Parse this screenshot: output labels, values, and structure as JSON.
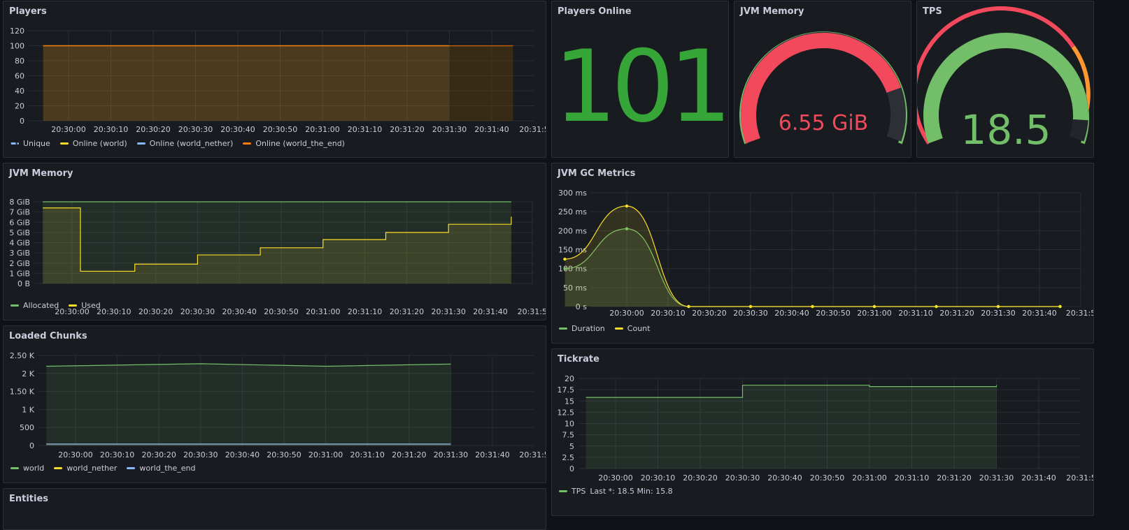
{
  "colors": {
    "green": "#73bf69",
    "yellow": "#fade2a",
    "blue": "#8ab8ff",
    "orange": "#ff780a",
    "red": "#f2495c",
    "big_green": "#37a638",
    "grid": "#2a2d33",
    "panel_bg": "#181b1f"
  },
  "time_ticks": [
    "20:30:00",
    "20:30:10",
    "20:30:20",
    "20:30:30",
    "20:30:40",
    "20:30:50",
    "20:31:00",
    "20:31:10",
    "20:31:20",
    "20:31:30",
    "20:31:40",
    "20:31:5"
  ],
  "panels": {
    "players": {
      "title": "Players",
      "legend": [
        {
          "label": "Unique",
          "color": "#8ab8ff",
          "dashed": true
        },
        {
          "label": "Online (world)",
          "color": "#fade2a"
        },
        {
          "label": "Online (world_nether)",
          "color": "#8ab8ff"
        },
        {
          "label": "Online (world_the_end)",
          "color": "#ff780a"
        }
      ]
    },
    "players_online": {
      "title": "Players Online",
      "value": "101"
    },
    "jvm_memory_gauge": {
      "title": "JVM Memory",
      "value": "6.55 GiB",
      "fraction": 0.82
    },
    "tps_gauge": {
      "title": "TPS",
      "value": "18.5",
      "fraction": 0.925
    },
    "jvm_memory": {
      "title": "JVM Memory",
      "legend": [
        {
          "label": "Allocated",
          "color": "#73bf69"
        },
        {
          "label": "Used",
          "color": "#fade2a"
        }
      ]
    },
    "jvm_gc": {
      "title": "JVM GC Metrics",
      "legend": [
        {
          "label": "Duration",
          "color": "#73bf69"
        },
        {
          "label": "Count",
          "color": "#fade2a"
        }
      ]
    },
    "loaded_chunks": {
      "title": "Loaded Chunks",
      "legend": [
        {
          "label": "world",
          "color": "#73bf69"
        },
        {
          "label": "world_nether",
          "color": "#fade2a"
        },
        {
          "label": "world_the_end",
          "color": "#8ab8ff"
        }
      ]
    },
    "tickrate": {
      "title": "Tickrate",
      "legend_series": "TPS",
      "legend_stats": "Last *: 18.5  Min: 15.8"
    },
    "entities": {
      "title": "Entities"
    }
  },
  "chart_data": [
    {
      "id": "players",
      "type": "line",
      "title": "Players",
      "yticks": [
        "0",
        "20",
        "40",
        "60",
        "80",
        "100",
        "120"
      ],
      "ylim": [
        0,
        120
      ],
      "xlim": [
        "20:29:54",
        "20:31:54"
      ],
      "series": [
        {
          "name": "Online (world)",
          "x": [
            "20:29:54",
            "20:31:45"
          ],
          "y": [
            100,
            100
          ]
        },
        {
          "name": "Online (world_the_end)",
          "x": [
            "20:29:54",
            "20:31:45"
          ],
          "y": [
            100,
            100
          ]
        }
      ]
    },
    {
      "id": "jvm_memory",
      "type": "line",
      "title": "JVM Memory",
      "yticks": [
        "0 B",
        "1 GiB",
        "2 GiB",
        "3 GiB",
        "4 GiB",
        "5 GiB",
        "6 GiB",
        "7 GiB",
        "8 GiB"
      ],
      "ylim": [
        0,
        8
      ],
      "series": [
        {
          "name": "Allocated",
          "unit": "GiB",
          "x": [
            "20:29:53",
            "20:31:45"
          ],
          "y": [
            8,
            8
          ]
        },
        {
          "name": "Used",
          "unit": "GiB",
          "x": [
            "20:29:53",
            "20:30:02",
            "20:30:15",
            "20:30:30",
            "20:30:45",
            "20:31:00",
            "20:31:15",
            "20:31:30",
            "20:31:45"
          ],
          "y": [
            7.4,
            1.2,
            1.9,
            2.8,
            3.5,
            4.3,
            5.0,
            5.8,
            6.55
          ]
        }
      ]
    },
    {
      "id": "loaded_chunks",
      "type": "line",
      "title": "Loaded Chunks",
      "yticks": [
        "0",
        "500",
        "1 K",
        "1.50 K",
        "2 K",
        "2.50 K"
      ],
      "ylim": [
        0,
        2500
      ],
      "series": [
        {
          "name": "world",
          "x": [
            "20:29:53",
            "20:30:30",
            "20:31:00",
            "20:31:30"
          ],
          "y": [
            2200,
            2270,
            2200,
            2260
          ]
        },
        {
          "name": "world_nether",
          "x": [
            "20:29:53",
            "20:31:30"
          ],
          "y": [
            40,
            40
          ]
        },
        {
          "name": "world_the_end",
          "x": [
            "20:29:53",
            "20:31:30"
          ],
          "y": [
            40,
            40
          ]
        }
      ]
    },
    {
      "id": "jvm_gc",
      "type": "line",
      "title": "JVM GC Metrics",
      "yticks": [
        "0 s",
        "50 ms",
        "100 ms",
        "150 ms",
        "200 ms",
        "250 ms",
        "300 ms"
      ],
      "ylim": [
        0,
        300
      ],
      "series": [
        {
          "name": "Duration",
          "unit": "ms",
          "x": [
            "20:29:45",
            "20:30:00",
            "20:30:15",
            "20:30:30",
            "20:30:45",
            "20:31:00",
            "20:31:15",
            "20:31:30",
            "20:31:45"
          ],
          "y": [
            100,
            205,
            0,
            0,
            0,
            0,
            0,
            0,
            0
          ]
        },
        {
          "name": "Count",
          "unit": "ms",
          "x": [
            "20:29:45",
            "20:30:00",
            "20:30:15",
            "20:30:30",
            "20:30:45",
            "20:31:00",
            "20:31:15",
            "20:31:30",
            "20:31:45"
          ],
          "y": [
            125,
            265,
            0,
            0,
            0,
            0,
            0,
            0,
            0
          ]
        }
      ]
    },
    {
      "id": "tickrate",
      "type": "line",
      "title": "Tickrate",
      "yticks": [
        "0",
        "2.5",
        "5",
        "7.5",
        "10",
        "12.5",
        "15",
        "17.5",
        "20"
      ],
      "ylim": [
        0,
        20
      ],
      "series": [
        {
          "name": "TPS",
          "x": [
            "20:29:53",
            "20:30:30",
            "20:30:30",
            "20:31:00",
            "20:31:00",
            "20:31:30",
            "20:31:30"
          ],
          "y": [
            15.8,
            15.8,
            18.5,
            18.5,
            18.2,
            18.2,
            18.5
          ]
        }
      ]
    }
  ]
}
